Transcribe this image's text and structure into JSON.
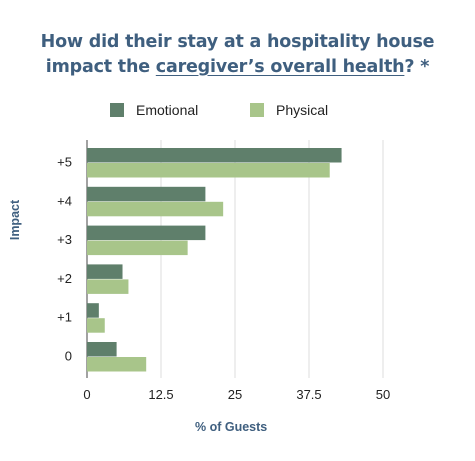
{
  "title_line1": "How did their stay at a hospitality house",
  "title_line2_pre": "impact the ",
  "title_line2_link": "caregiver’s overall health",
  "title_line2_post": "? *",
  "colors": {
    "title": "#3f5f7f",
    "emotional": "#5f7f6b",
    "physical": "#a8c58a",
    "grid": "#dcdcdc"
  },
  "chart_data": {
    "type": "bar",
    "orientation": "horizontal",
    "categories": [
      "+5",
      "+4",
      "+3",
      "+2",
      "+1",
      "0"
    ],
    "series": [
      {
        "name": "Emotional",
        "values": [
          43,
          20,
          20,
          6,
          2,
          5
        ]
      },
      {
        "name": "Physical",
        "values": [
          41,
          23,
          17,
          7,
          3,
          10
        ]
      }
    ],
    "xlabel": "% of Guests",
    "ylabel": "Impact",
    "xticks": [
      "0",
      "12.5",
      "25",
      "37.5",
      "50"
    ],
    "xlim": [
      0,
      50
    ],
    "grid": true,
    "legend_placement": "top"
  }
}
